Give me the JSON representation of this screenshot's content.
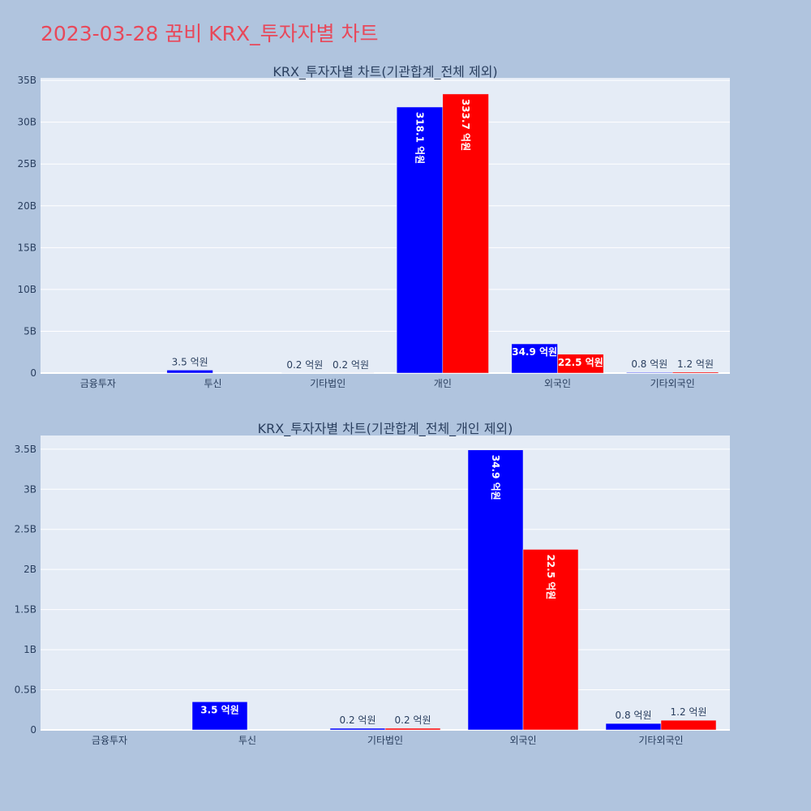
{
  "page_title": "2023-03-28 꿈비 KRX_투자자별 차트",
  "colors": {
    "background": "#b0c4de",
    "plot_bg": "#e5ecf6",
    "title": "#e8485a",
    "series_a": "#0000ff",
    "series_b": "#ff0000"
  },
  "chart_data": [
    {
      "type": "bar",
      "title": "KRX_투자자별 차트(기관합계_전체 제외)",
      "categories": [
        "금융투자",
        "투신",
        "기타법인",
        "개인",
        "외국인",
        "기타외국인"
      ],
      "yticks": [
        "0",
        "5B",
        "10B",
        "15B",
        "20B",
        "25B",
        "30B",
        "35B"
      ],
      "ylim": [
        0,
        35.3
      ],
      "y_unit": "B",
      "grid": true,
      "series": [
        {
          "color": "#0000ff",
          "values": [
            0,
            0.35,
            0.02,
            31.81,
            3.49,
            0.08
          ],
          "labels": [
            "",
            "3.5 억원",
            "0.2 억원",
            "318.1 억원",
            "34.9 억원",
            "0.8 억원"
          ]
        },
        {
          "color": "#ff0000",
          "values": [
            0,
            0,
            0.02,
            33.37,
            2.25,
            0.12
          ],
          "labels": [
            "",
            "",
            "0.2 억원",
            "333.7 억원",
            "22.5 억원",
            "1.2 억원"
          ]
        }
      ]
    },
    {
      "type": "bar",
      "title": "KRX_투자자별 차트(기관합계_전체_개인 제외)",
      "categories": [
        "금융투자",
        "투신",
        "기타법인",
        "외국인",
        "기타외국인"
      ],
      "yticks": [
        "0",
        "0.5B",
        "1B",
        "1.5B",
        "2B",
        "2.5B",
        "3B",
        "3.5B"
      ],
      "ylim": [
        0,
        3.67
      ],
      "y_unit": "B",
      "grid": true,
      "series": [
        {
          "color": "#0000ff",
          "values": [
            0,
            0.35,
            0.02,
            3.49,
            0.08
          ],
          "labels": [
            "",
            "3.5 억원",
            "0.2 억원",
            "34.9 억원",
            "0.8 억원"
          ]
        },
        {
          "color": "#ff0000",
          "values": [
            0,
            0,
            0.02,
            2.25,
            0.12
          ],
          "labels": [
            "",
            "",
            "0.2 억원",
            "22.5 억원",
            "1.2 억원"
          ]
        }
      ]
    }
  ]
}
